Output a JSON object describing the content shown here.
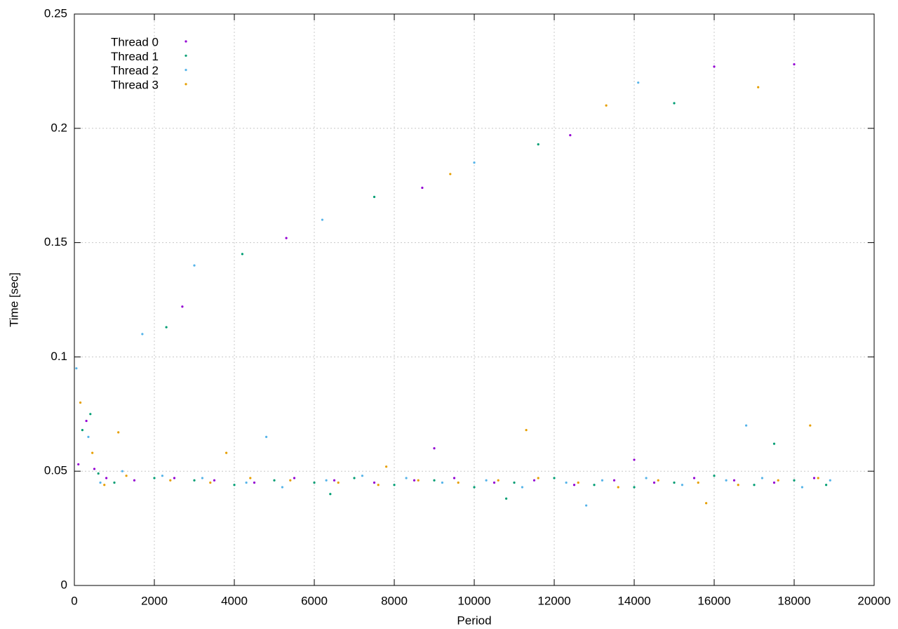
{
  "chart_data": {
    "type": "scatter",
    "x_label": "Period",
    "y_label": "Time [sec]",
    "xlim": [
      0,
      20000
    ],
    "ylim": [
      0,
      0.25
    ],
    "xticks": [
      0,
      2000,
      4000,
      6000,
      8000,
      10000,
      12000,
      14000,
      16000,
      18000,
      20000
    ],
    "yticks": [
      0,
      0.05,
      0.1,
      0.15,
      0.2,
      0.25
    ],
    "grid": true,
    "legend": "top-left",
    "series": [
      {
        "name": "Thread 0",
        "color": "#9400d3",
        "x": [
          100,
          300,
          500,
          800,
          1500,
          2500,
          3500,
          4500,
          5500,
          6500,
          7500,
          8500,
          9500,
          10500,
          11500,
          12500,
          13500,
          14500,
          15500,
          16500,
          17500,
          18500,
          2700,
          5300,
          8700,
          12400,
          16000,
          18000,
          9000,
          14000
        ],
        "values": [
          0.053,
          0.072,
          0.051,
          0.047,
          0.046,
          0.047,
          0.046,
          0.045,
          0.047,
          0.046,
          0.045,
          0.046,
          0.047,
          0.045,
          0.046,
          0.044,
          0.046,
          0.045,
          0.047,
          0.046,
          0.045,
          0.047,
          0.122,
          0.152,
          0.174,
          0.197,
          0.227,
          0.228,
          0.06,
          0.055
        ]
      },
      {
        "name": "Thread 1",
        "color": "#009e73",
        "x": [
          200,
          400,
          600,
          1000,
          2000,
          3000,
          4000,
          5000,
          6000,
          7000,
          8000,
          9000,
          10000,
          11000,
          12000,
          13000,
          14000,
          15000,
          16000,
          17000,
          18000,
          18800,
          2300,
          4200,
          7500,
          11600,
          15000,
          6400,
          10800,
          17500
        ],
        "values": [
          0.068,
          0.075,
          0.049,
          0.045,
          0.047,
          0.046,
          0.044,
          0.046,
          0.045,
          0.047,
          0.044,
          0.046,
          0.043,
          0.045,
          0.047,
          0.044,
          0.043,
          0.045,
          0.048,
          0.044,
          0.046,
          0.044,
          0.113,
          0.145,
          0.17,
          0.193,
          0.211,
          0.04,
          0.038,
          0.062
        ]
      },
      {
        "name": "Thread 2",
        "color": "#56b4e9",
        "x": [
          50,
          350,
          650,
          1200,
          2200,
          3200,
          4300,
          5200,
          6300,
          7200,
          8300,
          9200,
          10300,
          11200,
          12300,
          13200,
          14300,
          15200,
          16300,
          17200,
          18200,
          18900,
          1700,
          3000,
          6200,
          10000,
          14100,
          4800,
          12800,
          16800
        ],
        "values": [
          0.095,
          0.065,
          0.045,
          0.05,
          0.048,
          0.047,
          0.045,
          0.043,
          0.046,
          0.048,
          0.047,
          0.045,
          0.046,
          0.043,
          0.045,
          0.046,
          0.047,
          0.044,
          0.046,
          0.047,
          0.043,
          0.046,
          0.11,
          0.14,
          0.16,
          0.185,
          0.22,
          0.065,
          0.035,
          0.07
        ]
      },
      {
        "name": "Thread 3",
        "color": "#e69f00",
        "x": [
          150,
          450,
          750,
          1300,
          2400,
          3400,
          4400,
          5400,
          6600,
          7600,
          8600,
          9600,
          10600,
          11600,
          12600,
          13600,
          14600,
          15600,
          16600,
          17600,
          18600,
          13300,
          17100,
          9400,
          3800,
          7800,
          11300,
          15800,
          18400,
          1100
        ],
        "values": [
          0.08,
          0.058,
          0.044,
          0.048,
          0.046,
          0.045,
          0.047,
          0.046,
          0.045,
          0.044,
          0.046,
          0.045,
          0.046,
          0.047,
          0.045,
          0.043,
          0.046,
          0.045,
          0.044,
          0.046,
          0.047,
          0.21,
          0.218,
          0.18,
          0.058,
          0.052,
          0.068,
          0.036,
          0.07,
          0.067
        ]
      }
    ]
  }
}
